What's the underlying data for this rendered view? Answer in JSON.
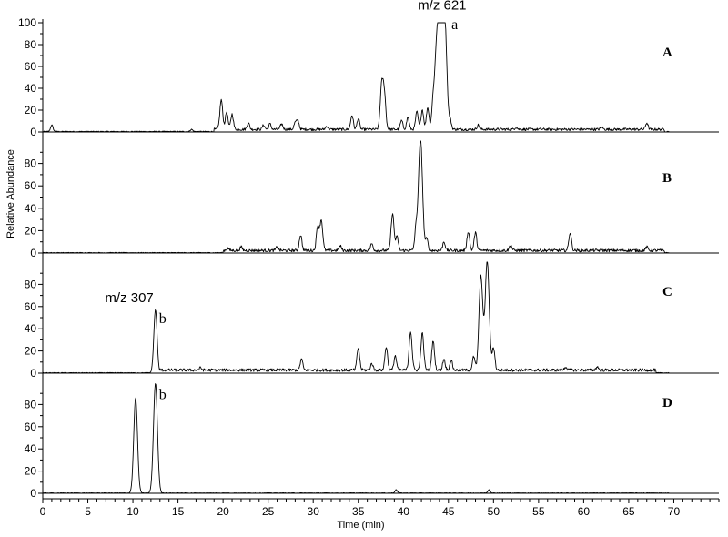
{
  "chart_data": {
    "type": "line",
    "xlabel": "Time (min)",
    "ylabel": "Relative Abundance",
    "xlim": [
      0,
      75
    ],
    "ylim": [
      0,
      100
    ],
    "x_ticks": [
      0,
      5,
      10,
      15,
      20,
      25,
      30,
      35,
      40,
      45,
      50,
      55,
      60,
      65,
      70
    ],
    "x_minor_step": 1,
    "y_ticks_full": [
      0,
      20,
      40,
      60,
      80,
      100
    ],
    "y_ticks_top_trimmed": [
      0,
      20,
      40,
      60,
      80
    ],
    "grid": false,
    "panels": [
      {
        "label": "A",
        "annotations": [
          {
            "text": "m/z 621",
            "x": 44.3,
            "y": 112
          },
          {
            "text": "a",
            "x": 45.7,
            "y": 94
          }
        ],
        "peaks": [
          {
            "x": 1.0,
            "y": 6
          },
          {
            "x": 16.5,
            "y": 2
          },
          {
            "x": 19.8,
            "y": 27
          },
          {
            "x": 20.4,
            "y": 16
          },
          {
            "x": 21.0,
            "y": 14
          },
          {
            "x": 22.8,
            "y": 6
          },
          {
            "x": 24.5,
            "y": 4
          },
          {
            "x": 25.2,
            "y": 5
          },
          {
            "x": 26.5,
            "y": 5
          },
          {
            "x": 28.0,
            "y": 6
          },
          {
            "x": 28.3,
            "y": 8
          },
          {
            "x": 31.5,
            "y": 3
          },
          {
            "x": 34.3,
            "y": 13
          },
          {
            "x": 35.0,
            "y": 10
          },
          {
            "x": 37.6,
            "y": 40
          },
          {
            "x": 37.9,
            "y": 30
          },
          {
            "x": 39.8,
            "y": 8
          },
          {
            "x": 40.5,
            "y": 11
          },
          {
            "x": 41.5,
            "y": 16
          },
          {
            "x": 42.1,
            "y": 18
          },
          {
            "x": 42.7,
            "y": 20
          },
          {
            "x": 43.3,
            "y": 26
          },
          {
            "x": 43.6,
            "y": 40
          },
          {
            "x": 43.9,
            "y": 86
          },
          {
            "x": 44.2,
            "y": 60
          },
          {
            "x": 44.6,
            "y": 99
          },
          {
            "x": 45.2,
            "y": 8
          },
          {
            "x": 48.3,
            "y": 4
          },
          {
            "x": 52.5,
            "y": 2
          },
          {
            "x": 62.0,
            "y": 2
          },
          {
            "x": 67.0,
            "y": 6
          }
        ]
      },
      {
        "label": "B",
        "annotations": [],
        "peaks": [
          {
            "x": 20.5,
            "y": 2
          },
          {
            "x": 22.0,
            "y": 3
          },
          {
            "x": 26.0,
            "y": 3
          },
          {
            "x": 28.6,
            "y": 14
          },
          {
            "x": 30.5,
            "y": 22
          },
          {
            "x": 30.9,
            "y": 27
          },
          {
            "x": 33.0,
            "y": 4
          },
          {
            "x": 36.5,
            "y": 6
          },
          {
            "x": 38.8,
            "y": 33
          },
          {
            "x": 39.3,
            "y": 12
          },
          {
            "x": 41.4,
            "y": 18
          },
          {
            "x": 41.9,
            "y": 100
          },
          {
            "x": 42.6,
            "y": 10
          },
          {
            "x": 44.5,
            "y": 8
          },
          {
            "x": 47.2,
            "y": 17
          },
          {
            "x": 48.0,
            "y": 16
          },
          {
            "x": 51.9,
            "y": 5
          },
          {
            "x": 58.5,
            "y": 16
          },
          {
            "x": 67.0,
            "y": 3
          }
        ]
      },
      {
        "label": "C",
        "annotations": [
          {
            "text": "m/z 307",
            "x": 9.6,
            "y": 64
          },
          {
            "text": "b",
            "x": 13.3,
            "y": 45
          }
        ],
        "peaks": [
          {
            "x": 12.5,
            "y": 57
          },
          {
            "x": 17.5,
            "y": 2
          },
          {
            "x": 28.7,
            "y": 10
          },
          {
            "x": 35.0,
            "y": 20
          },
          {
            "x": 36.5,
            "y": 6
          },
          {
            "x": 38.1,
            "y": 21
          },
          {
            "x": 39.1,
            "y": 13
          },
          {
            "x": 40.8,
            "y": 35
          },
          {
            "x": 42.1,
            "y": 33
          },
          {
            "x": 43.3,
            "y": 26
          },
          {
            "x": 44.5,
            "y": 10
          },
          {
            "x": 45.3,
            "y": 9
          },
          {
            "x": 47.8,
            "y": 12
          },
          {
            "x": 48.6,
            "y": 85
          },
          {
            "x": 49.3,
            "y": 99
          },
          {
            "x": 50.0,
            "y": 20
          },
          {
            "x": 58.0,
            "y": 3
          },
          {
            "x": 61.5,
            "y": 3
          }
        ]
      },
      {
        "label": "D",
        "annotations": [
          {
            "text": "b",
            "x": 13.3,
            "y": 85
          }
        ],
        "peaks": [
          {
            "x": 10.3,
            "y": 86
          },
          {
            "x": 12.5,
            "y": 99
          },
          {
            "x": 39.2,
            "y": 3
          },
          {
            "x": 49.5,
            "y": 3
          }
        ]
      }
    ]
  }
}
